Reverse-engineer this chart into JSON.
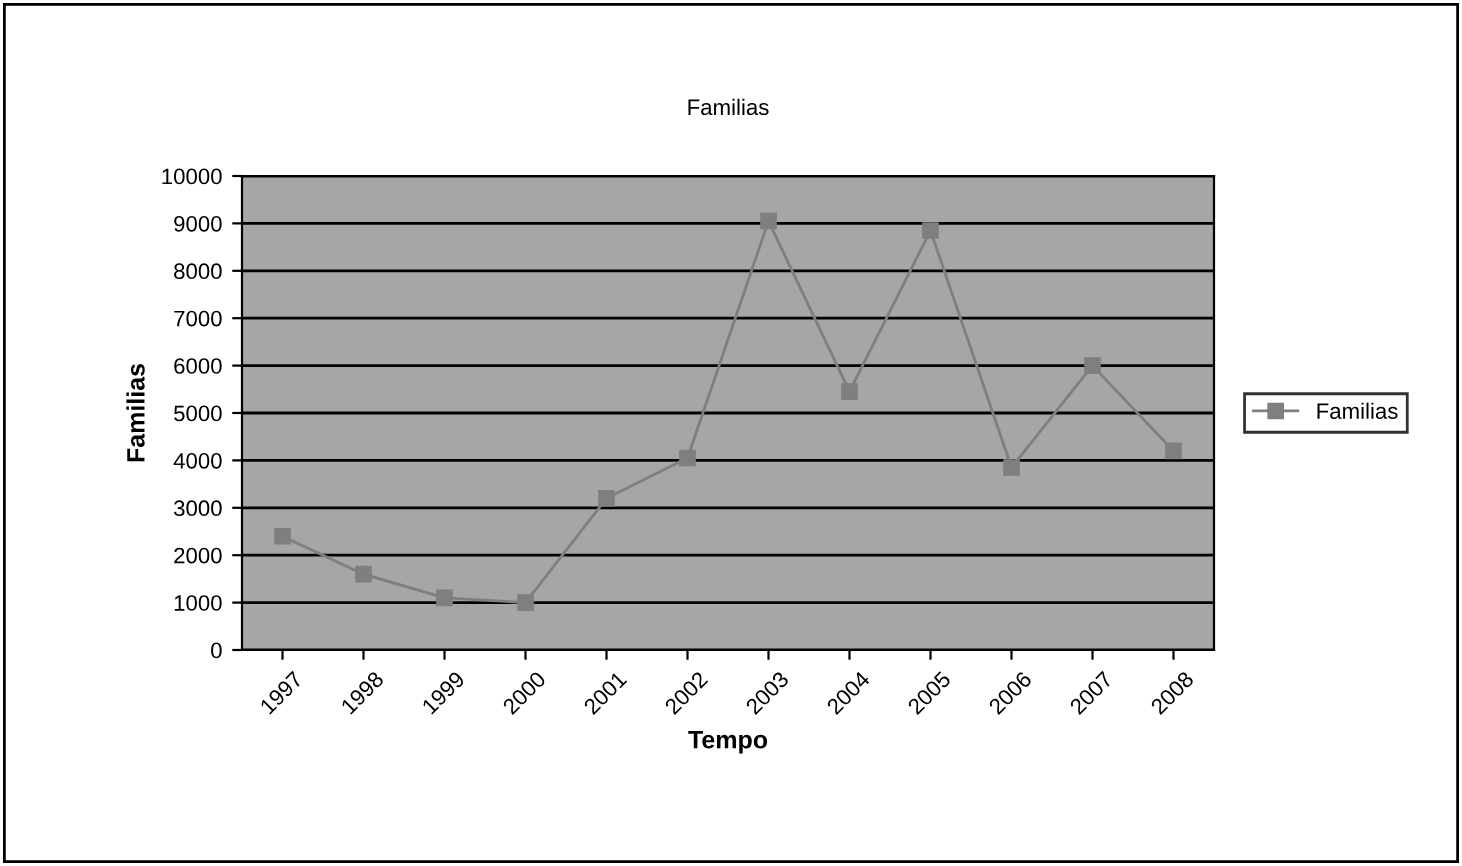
{
  "chart_data": {
    "type": "line",
    "title": "Familias",
    "xlabel": "Tempo",
    "ylabel": "Familias",
    "categories": [
      "1997",
      "1998",
      "1999",
      "2000",
      "2001",
      "2002",
      "2003",
      "2004",
      "2005",
      "2006",
      "2007",
      "2008"
    ],
    "series": [
      {
        "name": "Familias",
        "color": "#7f7f7f",
        "values": [
          2400,
          1600,
          1100,
          1000,
          3200,
          4050,
          9050,
          5450,
          8850,
          3850,
          6000,
          4200
        ]
      }
    ],
    "ylim": [
      0,
      10000
    ],
    "yticks": [
      0,
      1000,
      2000,
      3000,
      4000,
      5000,
      6000,
      7000,
      8000,
      9000,
      10000
    ],
    "grid": "y",
    "legend": "right",
    "marker": "square",
    "line_style": "solid"
  }
}
